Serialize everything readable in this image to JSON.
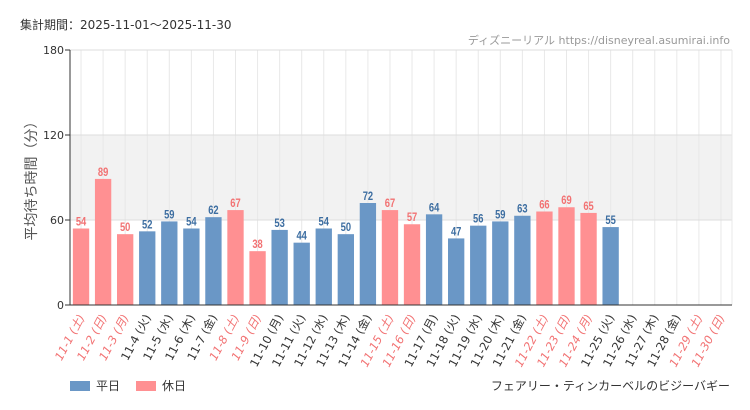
{
  "header": {
    "period_label": "集計期間：2025-11-01～2025-11-30",
    "credit": "ディズニーリアル https://disneyreal.asumirai.info"
  },
  "footer": {
    "attraction": "フェアリー・ティンカーベルのビジーバギー"
  },
  "colors": {
    "weekday": "#6a97c6",
    "holiday": "#ff9092",
    "weekday_text": "#3d6ea1",
    "holiday_text": "#f27273",
    "axis_text": "#333333"
  },
  "chart_data": {
    "type": "bar",
    "title": "",
    "ylabel": "平均待ち時間（分）",
    "xlabel": "",
    "ylim": [
      0,
      180
    ],
    "yticks": [
      0,
      60,
      120,
      180
    ],
    "shaded_band": [
      60,
      120
    ],
    "legend": [
      {
        "key": "weekday",
        "label": "平日"
      },
      {
        "key": "holiday",
        "label": "休日"
      }
    ],
    "categories": [
      "11-1 (土)",
      "11-2 (日)",
      "11-3 (月)",
      "11-4 (火)",
      "11-5 (水)",
      "11-6 (木)",
      "11-7 (金)",
      "11-8 (土)",
      "11-9 (日)",
      "11-10 (月)",
      "11-11 (火)",
      "11-12 (水)",
      "11-13 (木)",
      "11-14 (金)",
      "11-15 (土)",
      "11-16 (日)",
      "11-17 (月)",
      "11-18 (火)",
      "11-19 (水)",
      "11-20 (木)",
      "11-21 (金)",
      "11-22 (土)",
      "11-23 (日)",
      "11-24 (月)",
      "11-25 (火)",
      "11-26 (水)",
      "11-27 (木)",
      "11-28 (金)",
      "11-29 (土)",
      "11-30 (日)"
    ],
    "values": [
      54,
      89,
      50,
      52,
      59,
      54,
      62,
      67,
      38,
      53,
      44,
      54,
      50,
      72,
      67,
      57,
      64,
      47,
      56,
      59,
      63,
      66,
      69,
      65,
      55,
      null,
      null,
      null,
      null,
      null
    ],
    "day_type": [
      "holiday",
      "holiday",
      "holiday",
      "weekday",
      "weekday",
      "weekday",
      "weekday",
      "holiday",
      "holiday",
      "weekday",
      "weekday",
      "weekday",
      "weekday",
      "weekday",
      "holiday",
      "holiday",
      "weekday",
      "weekday",
      "weekday",
      "weekday",
      "weekday",
      "holiday",
      "holiday",
      "holiday",
      "weekday",
      "weekday",
      "weekday",
      "weekday",
      "holiday",
      "holiday"
    ]
  }
}
